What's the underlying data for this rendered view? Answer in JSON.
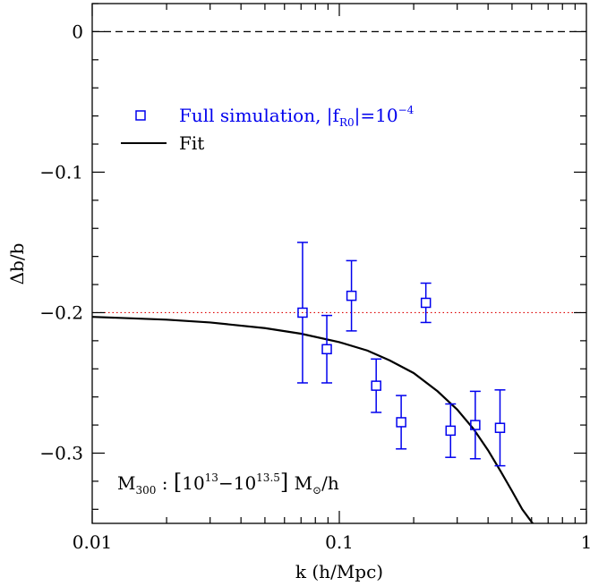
{
  "chart_data": {
    "type": "scatter",
    "xlabel": "k (h/Mpc)",
    "ylabel": "Δb/b",
    "xscale": "log",
    "xlim": [
      0.01,
      1
    ],
    "ylim": [
      -0.35,
      0.02
    ],
    "x_ticks": [
      {
        "value": 0.01,
        "label": "0.01"
      },
      {
        "value": 0.1,
        "label": "0.1"
      },
      {
        "value": 1,
        "label": "1"
      }
    ],
    "y_ticks": [
      {
        "value": 0,
        "label": "0"
      },
      {
        "value": -0.1,
        "label": "−0.1"
      },
      {
        "value": -0.2,
        "label": "−0.2"
      },
      {
        "value": -0.3,
        "label": "−0.3"
      }
    ],
    "series": [
      {
        "name": "Full simulation, |f_R0|=10^-4",
        "type": "scatter",
        "marker": "open-square",
        "color": "#0000ee",
        "x": [
          0.071,
          0.089,
          0.112,
          0.141,
          0.178,
          0.224,
          0.282,
          0.355,
          0.447
        ],
        "y": [
          -0.2,
          -0.226,
          -0.188,
          -0.252,
          -0.278,
          -0.193,
          -0.284,
          -0.28,
          -0.282
        ],
        "yerr": [
          0.05,
          0.024,
          0.025,
          0.019,
          0.019,
          0.014,
          0.019,
          0.024,
          0.027
        ]
      },
      {
        "name": "Fit",
        "type": "line",
        "color": "#000000",
        "x": [
          0.01,
          0.02,
          0.03,
          0.05,
          0.07,
          0.1,
          0.13,
          0.16,
          0.2,
          0.25,
          0.3,
          0.35,
          0.4,
          0.45,
          0.5,
          0.55,
          0.6,
          0.62
        ],
        "y": [
          -0.203,
          -0.205,
          -0.207,
          -0.211,
          -0.215,
          -0.221,
          -0.227,
          -0.234,
          -0.243,
          -0.256,
          -0.269,
          -0.283,
          -0.298,
          -0.313,
          -0.327,
          -0.34,
          -0.349,
          -0.352
        ]
      }
    ],
    "reference_lines": [
      {
        "y": 0,
        "style": "dashed",
        "color": "#000000"
      },
      {
        "y": -0.2,
        "style": "dotted",
        "color": "#dd0000"
      }
    ],
    "legend": {
      "placement": "top-left",
      "entries": [
        {
          "label": "Full simulation, |f",
          "sub": "R0",
          "post": "|=10",
          "sup": "−4",
          "color": "#0000ee",
          "marker": "open-square"
        },
        {
          "label": "Fit",
          "color": "#000000",
          "marker": "line"
        }
      ]
    },
    "annotation": {
      "placement": "bottom-left",
      "m": "M",
      "m_sub": "300",
      "colon": " : ",
      "open": "[",
      "b1": "10",
      "e1": "13",
      "dash": "−",
      "b2": "10",
      "e2": "13.5",
      "close": "]",
      "unit_m": " M",
      "unit_sub": "⊙",
      "unit_end": "/h"
    }
  }
}
